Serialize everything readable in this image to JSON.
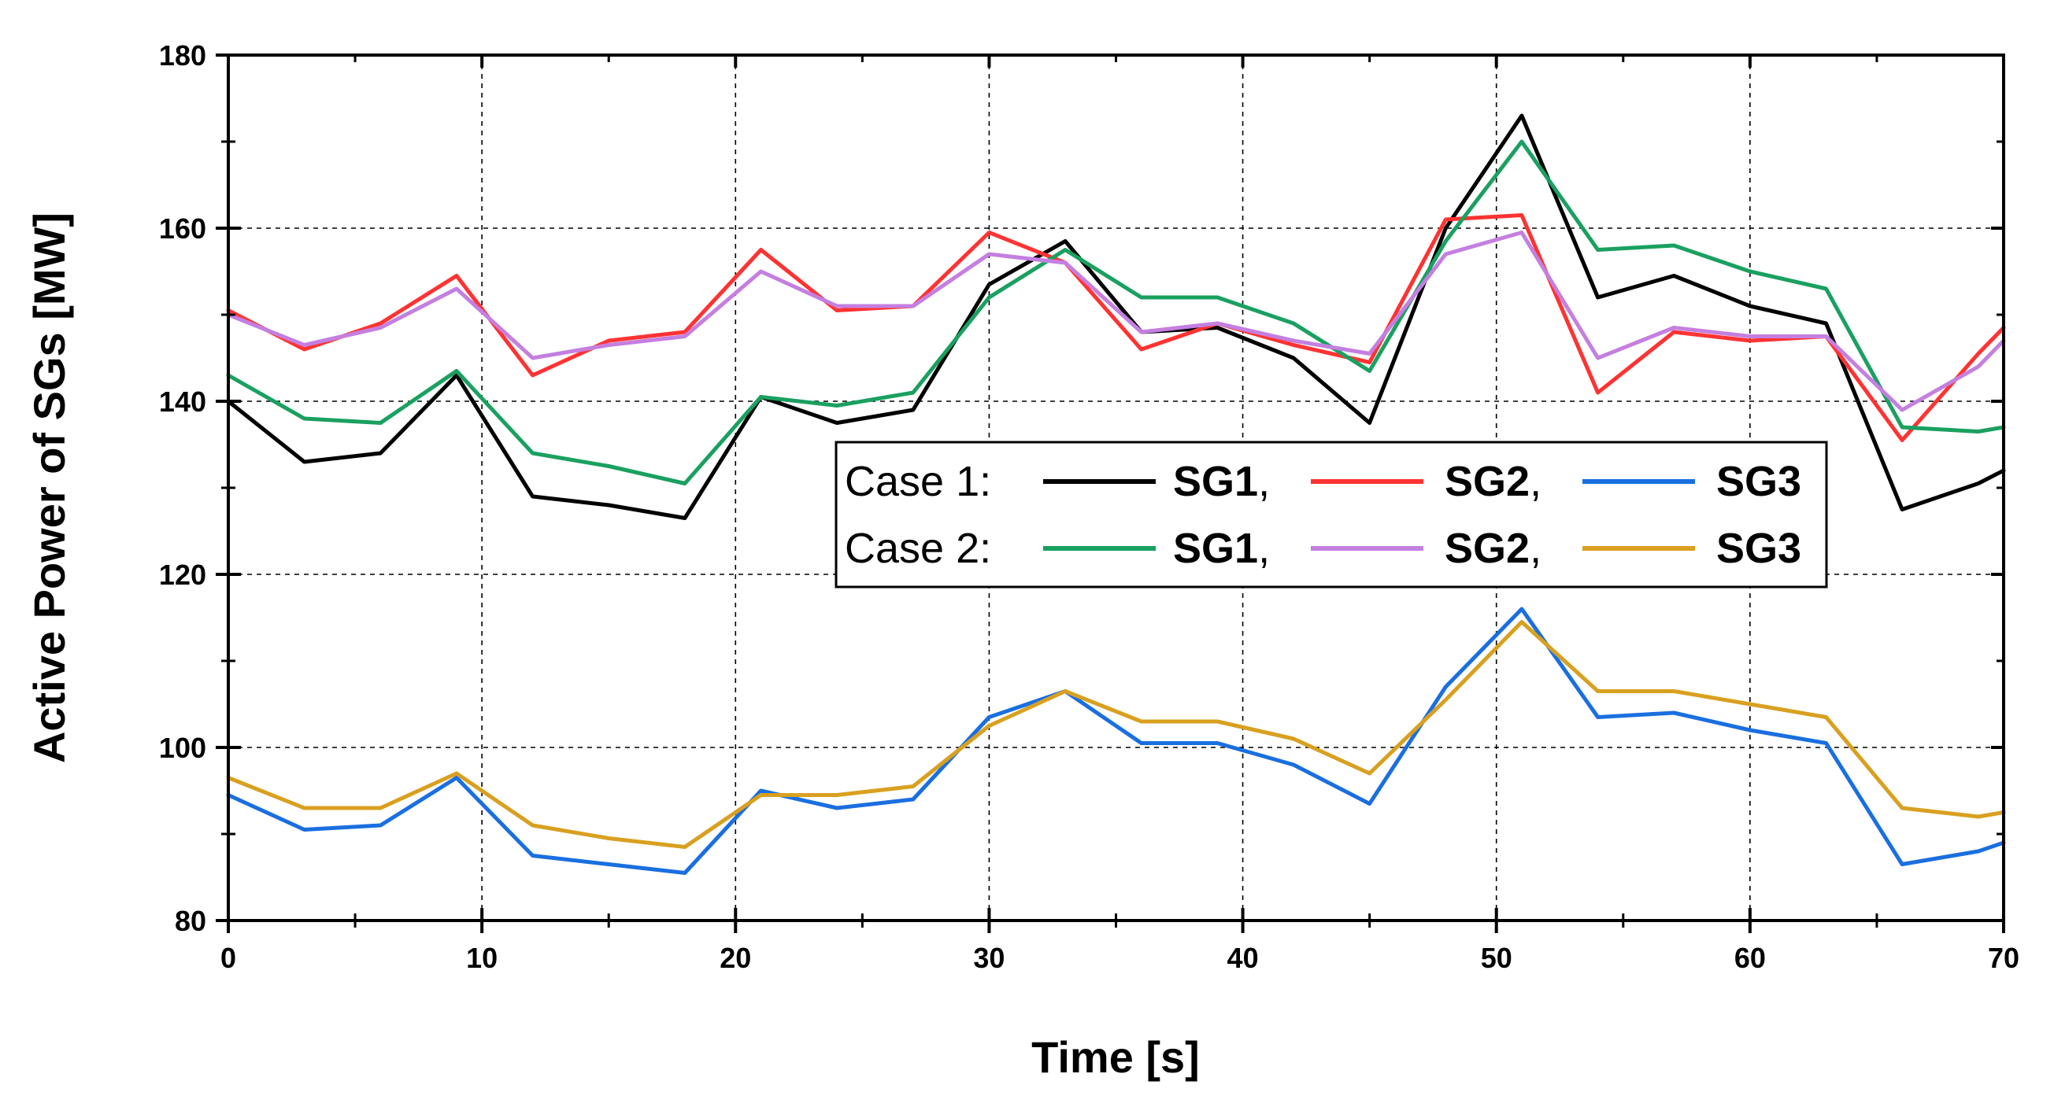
{
  "chart_data": {
    "type": "line",
    "xlabel": "Time [s]",
    "ylabel": "Active Power of SGs [MW]",
    "xlim": [
      0,
      70
    ],
    "ylim": [
      80,
      180
    ],
    "x_ticks": [
      0,
      10,
      20,
      30,
      40,
      50,
      60,
      70
    ],
    "y_ticks": [
      80,
      100,
      120,
      140,
      160,
      180
    ],
    "grid": "dashed",
    "legend": {
      "placement": "center-right",
      "rows": [
        {
          "label": "Case 1:",
          "entries": [
            {
              "name": "SG1",
              "suffix": ","
            },
            {
              "name": "SG2",
              "suffix": ","
            },
            {
              "name": "SG3",
              "suffix": ""
            }
          ]
        },
        {
          "label": "Case 2:",
          "entries": [
            {
              "name": "SG1",
              "suffix": ","
            },
            {
              "name": "SG2",
              "suffix": ","
            },
            {
              "name": "SG3",
              "suffix": ""
            }
          ]
        }
      ]
    },
    "series": [
      {
        "name": "Case 1 SG1",
        "color": "#000000",
        "x": [
          0,
          3,
          6,
          9,
          12,
          15,
          18,
          21,
          24,
          27,
          30,
          33,
          36,
          39,
          42,
          45,
          48,
          51,
          54,
          57,
          60,
          63,
          66,
          69,
          70
        ],
        "y": [
          140,
          133,
          134,
          143,
          129,
          128,
          126.5,
          140.5,
          137.5,
          139,
          153.5,
          158.5,
          148,
          148.5,
          145,
          137.5,
          160,
          173,
          152,
          154.5,
          151,
          149,
          127.5,
          130.5,
          132
        ]
      },
      {
        "name": "Case 1 SG2",
        "color": "#ff3333",
        "x": [
          0,
          3,
          6,
          9,
          12,
          15,
          18,
          21,
          24,
          27,
          30,
          33,
          36,
          39,
          42,
          45,
          48,
          51,
          54,
          57,
          60,
          63,
          66,
          69,
          70
        ],
        "y": [
          150.5,
          146,
          149,
          154.5,
          143,
          147,
          148,
          157.5,
          150.5,
          151,
          159.5,
          156,
          146,
          149,
          146.5,
          144.5,
          161,
          161.5,
          141,
          148,
          147,
          147.5,
          135.5,
          145.5,
          148.5
        ]
      },
      {
        "name": "Case 1 SG3",
        "color": "#1a6fe0",
        "x": [
          0,
          3,
          6,
          9,
          12,
          15,
          18,
          21,
          24,
          27,
          30,
          33,
          36,
          39,
          42,
          45,
          48,
          51,
          54,
          57,
          60,
          63,
          66,
          69,
          70
        ],
        "y": [
          94.5,
          90.5,
          91,
          96.5,
          87.5,
          86.5,
          85.5,
          95,
          93,
          94,
          103.5,
          106.5,
          100.5,
          100.5,
          98,
          93.5,
          107,
          116,
          103.5,
          104,
          102,
          100.5,
          86.5,
          88,
          89
        ]
      },
      {
        "name": "Case 2 SG1",
        "color": "#1aa060",
        "x": [
          0,
          3,
          6,
          9,
          12,
          15,
          18,
          21,
          24,
          27,
          30,
          33,
          36,
          39,
          42,
          45,
          48,
          51,
          54,
          57,
          60,
          63,
          66,
          69,
          70
        ],
        "y": [
          143,
          138,
          137.5,
          143.5,
          134,
          132.5,
          130.5,
          140.5,
          139.5,
          141,
          152,
          157.5,
          152,
          152,
          149,
          143.5,
          158.5,
          170,
          157.5,
          158,
          155,
          153,
          137,
          136.5,
          137
        ]
      },
      {
        "name": "Case 2 SG2",
        "color": "#c47fe0",
        "x": [
          0,
          3,
          6,
          9,
          12,
          15,
          18,
          21,
          24,
          27,
          30,
          33,
          36,
          39,
          42,
          45,
          48,
          51,
          54,
          57,
          60,
          63,
          66,
          69,
          70
        ],
        "y": [
          150,
          146.5,
          148.5,
          153,
          145,
          146.5,
          147.5,
          155,
          151,
          151,
          157,
          156,
          148,
          149,
          147,
          145.5,
          157,
          159.5,
          145,
          148.5,
          147.5,
          147.5,
          139,
          144,
          147
        ]
      },
      {
        "name": "Case 2 SG3",
        "color": "#d9a020",
        "x": [
          0,
          3,
          6,
          9,
          12,
          15,
          18,
          21,
          24,
          27,
          30,
          33,
          36,
          39,
          42,
          45,
          48,
          51,
          54,
          57,
          60,
          63,
          66,
          69,
          70
        ],
        "y": [
          96.5,
          93,
          93,
          97,
          91,
          89.5,
          88.5,
          94.5,
          94.5,
          95.5,
          102.5,
          106.5,
          103,
          103,
          101,
          97,
          105.5,
          114.5,
          106.5,
          106.5,
          105,
          103.5,
          93,
          92,
          92.5
        ]
      }
    ]
  }
}
